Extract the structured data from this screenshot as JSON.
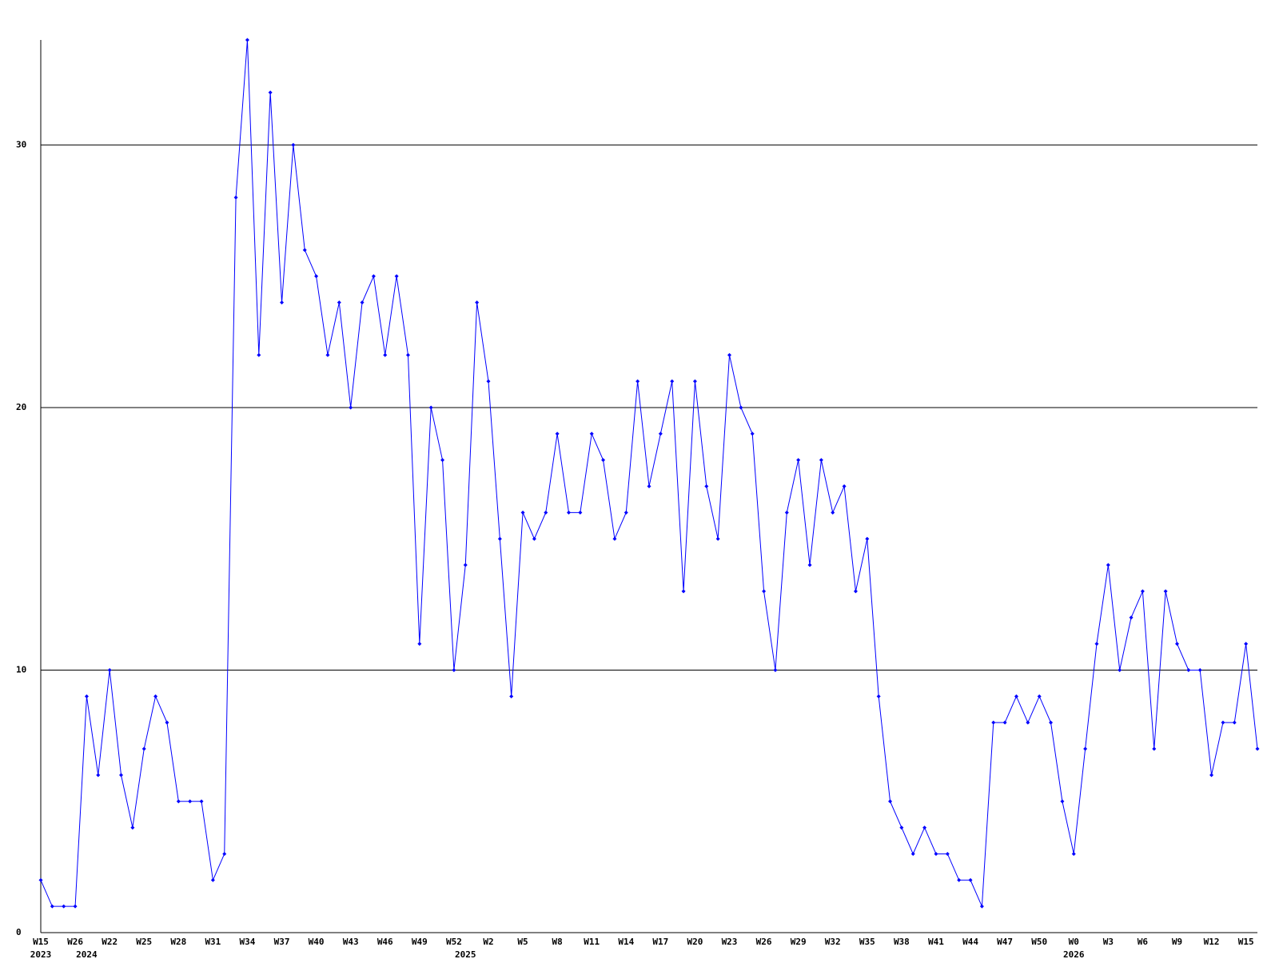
{
  "chart_data": {
    "type": "line",
    "categories": [
      "W15",
      null,
      null,
      "W26",
      null,
      null,
      "W22",
      null,
      null,
      "W25",
      null,
      null,
      "W28",
      null,
      null,
      "W31",
      null,
      null,
      "W34",
      null,
      null,
      "W37",
      null,
      null,
      "W40",
      null,
      null,
      "W43",
      null,
      null,
      "W46",
      null,
      null,
      "W49",
      null,
      null,
      "W52",
      null,
      null,
      "W2",
      null,
      null,
      "W5",
      null,
      null,
      "W8",
      null,
      null,
      "W11",
      null,
      null,
      "W14",
      null,
      null,
      "W17",
      null,
      null,
      "W20",
      null,
      null,
      "W23",
      null,
      null,
      "W26",
      null,
      null,
      "W29",
      null,
      null,
      "W32",
      null,
      null,
      "W35",
      null,
      null,
      "W38",
      null,
      null,
      "W41",
      null,
      null,
      "W44",
      null,
      null,
      "W47",
      null,
      null,
      "W50",
      null,
      null,
      "W0",
      null,
      null,
      "W3",
      null,
      null,
      "W6",
      null,
      null,
      "W9",
      null,
      null,
      "W12",
      null,
      null,
      "W15",
      null
    ],
    "category_years": [
      "2023",
      null,
      null,
      null,
      "2024",
      null,
      null,
      null,
      null,
      null,
      null,
      null,
      null,
      null,
      null,
      null,
      null,
      null,
      null,
      null,
      null,
      null,
      null,
      null,
      null,
      null,
      null,
      null,
      null,
      null,
      null,
      null,
      null,
      null,
      null,
      null,
      null,
      "2025",
      null,
      null,
      null,
      null,
      null,
      null,
      null,
      null,
      null,
      null,
      null,
      null,
      null,
      null,
      null,
      null,
      null,
      null,
      null,
      null,
      null,
      null,
      null,
      null,
      null,
      null,
      null,
      null,
      null,
      null,
      null,
      null,
      null,
      null,
      null,
      null,
      null,
      null,
      null,
      null,
      null,
      null,
      null,
      null,
      null,
      null,
      null,
      null,
      null,
      null,
      null,
      null,
      "2026",
      null,
      null,
      null,
      null,
      null,
      null,
      null,
      null,
      null,
      null,
      null,
      null,
      null,
      null,
      null,
      null
    ],
    "values": [
      2,
      1,
      1,
      1,
      9,
      6,
      10,
      6,
      4,
      7,
      9,
      8,
      5,
      5,
      5,
      2,
      3,
      28,
      34,
      22,
      32,
      24,
      30,
      26,
      25,
      22,
      24,
      20,
      24,
      25,
      22,
      25,
      22,
      11,
      20,
      18,
      10,
      14,
      24,
      21,
      15,
      9,
      16,
      15,
      16,
      19,
      16,
      16,
      19,
      18,
      15,
      16,
      21,
      17,
      19,
      21,
      13,
      21,
      17,
      15,
      22,
      20,
      19,
      13,
      10,
      16,
      18,
      14,
      18,
      16,
      17,
      13,
      15,
      9,
      5,
      4,
      3,
      4,
      3,
      3,
      2,
      2,
      1,
      8,
      8,
      9,
      8,
      9,
      8,
      5,
      3,
      7,
      11,
      14,
      10,
      12,
      13,
      7,
      13,
      11,
      10,
      10,
      6,
      8,
      8,
      11,
      7
    ],
    "color": "#0000ff",
    "ylim": [
      0,
      34
    ],
    "yticks": [
      0,
      10,
      20,
      30
    ],
    "grid": true
  }
}
